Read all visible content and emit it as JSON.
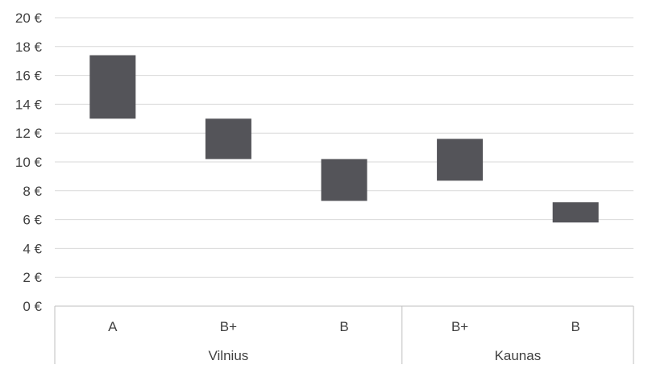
{
  "chart_data": {
    "type": "bar",
    "subtype": "floating-range",
    "groups": [
      {
        "label": "Vilnius",
        "categories": [
          "A",
          "B+",
          "B"
        ]
      },
      {
        "label": "Kaunas",
        "categories": [
          "B+",
          "B"
        ]
      }
    ],
    "series": [
      {
        "values": [
          {
            "low": 13.0,
            "high": 17.4
          },
          {
            "low": 10.2,
            "high": 13.0
          },
          {
            "low": 7.3,
            "high": 10.2
          },
          {
            "low": 8.7,
            "high": 11.6
          },
          {
            "low": 5.8,
            "high": 7.2
          }
        ]
      }
    ],
    "yticks": [
      "0 €",
      "2 €",
      "4 €",
      "6 €",
      "8 €",
      "10 €",
      "12 €",
      "14 €",
      "16 €",
      "18 €",
      "20 €"
    ],
    "ylim": [
      0,
      20
    ],
    "ystep": 2,
    "title": "",
    "xlabel": "",
    "ylabel": "",
    "grid": true,
    "legend": "none",
    "colors": {
      "bar": "#545459",
      "grid": "#d9d9d9",
      "axis": "#bfbfbf",
      "text": "#404040"
    }
  }
}
